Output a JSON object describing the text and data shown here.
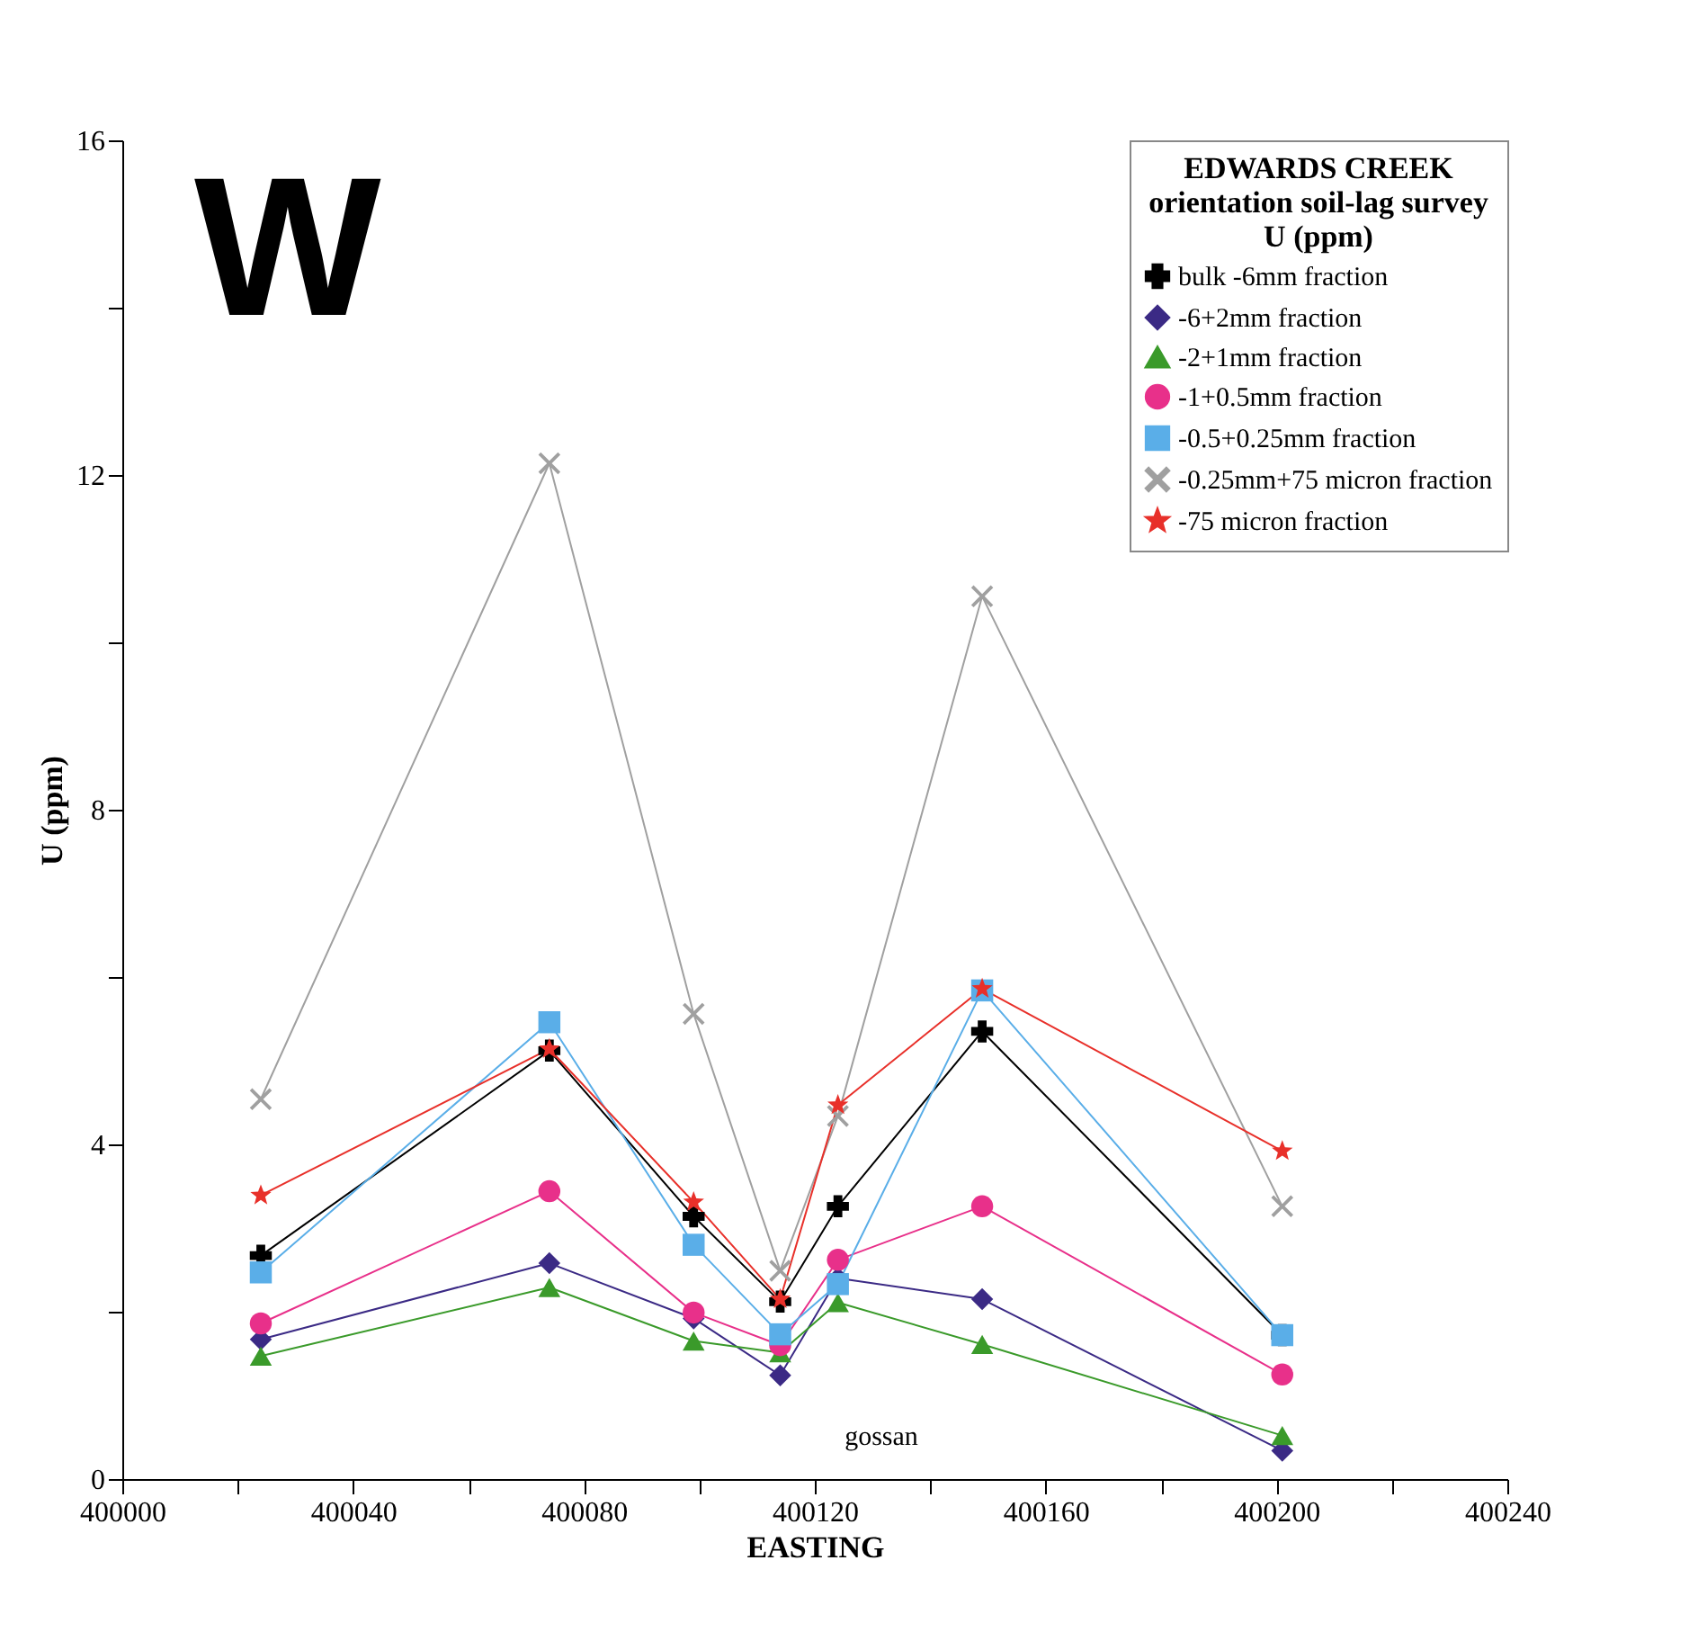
{
  "chart_data": {
    "type": "line",
    "legend_title": "EDWARDS CREEK\norientation soil-lag survey\nU (ppm)",
    "xlabel": "EASTING",
    "ylabel": "U (ppm)",
    "annotations": [
      "W",
      "gossan"
    ],
    "x": [
      400024,
      400074,
      400099,
      400114,
      400124,
      400149,
      400201
    ],
    "series": [
      {
        "name": "bulk -6mm fraction",
        "color": "#000000",
        "marker": "cross",
        "values": [
          2.67,
          5.12,
          3.14,
          2.12,
          3.26,
          5.35,
          1.72
        ]
      },
      {
        "name": "-6+2mm fraction",
        "color": "#3b2a85",
        "marker": "diamond",
        "values": [
          1.67,
          2.58,
          1.92,
          1.24,
          2.4,
          2.15,
          0.34
        ]
      },
      {
        "name": "-2+1mm fraction",
        "color": "#3a9a2a",
        "marker": "triangle",
        "values": [
          1.47,
          2.29,
          1.65,
          1.51,
          2.11,
          1.61,
          0.52
        ]
      },
      {
        "name": "-1+0.5mm fraction",
        "color": "#e8308a",
        "marker": "circle",
        "values": [
          1.86,
          3.44,
          1.99,
          1.6,
          2.62,
          3.26,
          1.25
        ]
      },
      {
        "name": "-0.5+0.25mm fraction",
        "color": "#5aaee8",
        "marker": "square",
        "values": [
          2.47,
          5.46,
          2.8,
          1.73,
          2.33,
          5.84,
          1.72
        ]
      },
      {
        "name": "-0.25mm+75 micron fraction",
        "color": "#a0a0a0",
        "marker": "x",
        "values": [
          4.54,
          12.14,
          5.56,
          2.49,
          4.34,
          10.55,
          3.26
        ]
      },
      {
        "name": "-75 micron fraction",
        "color": "#e8302a",
        "marker": "star",
        "values": [
          3.39,
          5.14,
          3.31,
          2.15,
          4.47,
          5.86,
          3.92
        ]
      }
    ],
    "xlim": [
      400000,
      400240
    ],
    "xticks": [
      400000,
      {
        "value": 400020,
        "label": null
      },
      400040,
      {
        "value": 400060,
        "label": null
      },
      400080,
      {
        "value": 400100,
        "label": null
      },
      400120,
      {
        "value": 400140,
        "label": null
      },
      400160,
      {
        "value": 400180,
        "label": null
      },
      400200,
      {
        "value": 400220,
        "label": null
      },
      400240
    ],
    "ylim": [
      0,
      16
    ],
    "yticks": [
      0,
      {
        "value": 2,
        "label": null
      },
      4,
      {
        "value": 6,
        "label": null
      },
      8,
      {
        "value": 10,
        "label": null
      },
      12,
      {
        "value": 14,
        "label": null
      },
      16
    ],
    "grid": false,
    "legend": "top right",
    "line_style": "solid"
  }
}
